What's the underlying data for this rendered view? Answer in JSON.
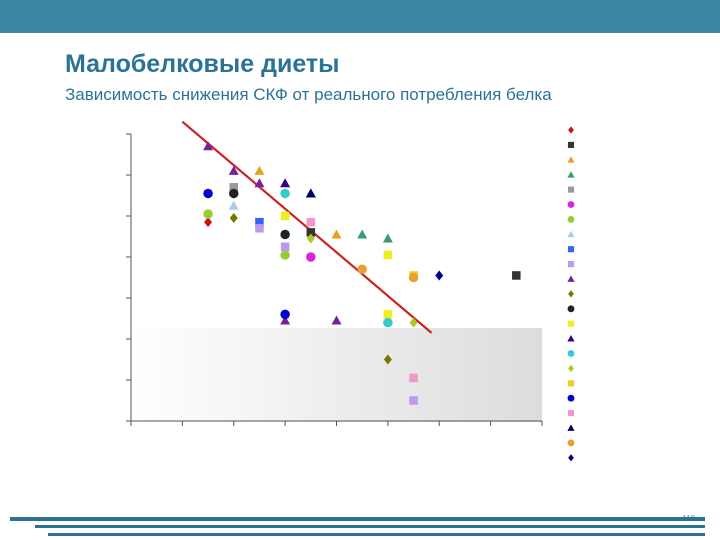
{
  "header": {
    "title": "Малобелковые диеты",
    "subtitle": "Зависимость снижения СКФ от реального потребления белка"
  },
  "footer": {
    "page_number": "118"
  },
  "colors": {
    "accent": "#3a87a6",
    "heading": "#2a7396",
    "trend_line": "#cc2222"
  },
  "chart_data": {
    "type": "scatter",
    "title": "",
    "xlabel": "",
    "ylabel": "",
    "xlim": [
      0,
      8
    ],
    "ylim": [
      0,
      7
    ],
    "grid": false,
    "legend_position": "right",
    "series": [
      {
        "marker": "diamond",
        "color": "#cc1111",
        "points": [
          [
            1.5,
            4.85
          ]
        ]
      },
      {
        "marker": "square",
        "color": "#333333",
        "points": [
          [
            3.5,
            4.6
          ],
          [
            7.5,
            3.55
          ]
        ]
      },
      {
        "marker": "triangle",
        "color": "#e8a020",
        "points": [
          [
            2.5,
            6.1
          ],
          [
            4.0,
            4.55
          ]
        ]
      },
      {
        "marker": "triangle",
        "color": "#3a9a70",
        "points": [
          [
            4.5,
            4.55
          ],
          [
            5.0,
            4.45
          ]
        ]
      },
      {
        "marker": "square",
        "color": "#999999",
        "points": [
          [
            2.0,
            5.7
          ]
        ]
      },
      {
        "marker": "circle",
        "color": "#dd22dd",
        "points": [
          [
            3.5,
            4.0
          ]
        ]
      },
      {
        "marker": "circle",
        "color": "#99cc33",
        "points": [
          [
            1.5,
            5.05
          ],
          [
            3.0,
            4.05
          ]
        ]
      },
      {
        "marker": "triangle",
        "color": "#aaccee",
        "points": [
          [
            2.0,
            5.25
          ]
        ]
      },
      {
        "marker": "square",
        "color": "#3366ee",
        "points": [
          [
            2.5,
            4.85
          ]
        ]
      },
      {
        "marker": "square",
        "color": "#bb99ee",
        "points": [
          [
            2.5,
            4.7
          ],
          [
            3.0,
            4.25
          ],
          [
            5.5,
            0.5
          ]
        ]
      },
      {
        "marker": "triangle",
        "color": "#772299",
        "points": [
          [
            1.5,
            6.7
          ],
          [
            2.0,
            6.1
          ],
          [
            2.5,
            5.8
          ],
          [
            3.0,
            2.45
          ],
          [
            4.0,
            2.45
          ]
        ]
      },
      {
        "marker": "diamond",
        "color": "#777700",
        "points": [
          [
            2.0,
            4.95
          ],
          [
            5.0,
            1.5
          ]
        ]
      },
      {
        "marker": "circle",
        "color": "#222222",
        "points": [
          [
            2.0,
            5.55
          ],
          [
            3.0,
            4.55
          ]
        ]
      },
      {
        "marker": "square",
        "color": "#eeee22",
        "points": [
          [
            3.0,
            5.0
          ],
          [
            5.0,
            4.05
          ],
          [
            5.0,
            2.6
          ]
        ]
      },
      {
        "marker": "triangle",
        "color": "#330088",
        "points": [
          [
            3.0,
            5.8
          ],
          [
            3.5,
            5.55
          ]
        ]
      },
      {
        "marker": "circle",
        "color": "#33cccc",
        "points": [
          [
            3.0,
            5.55
          ],
          [
            5.0,
            2.4
          ]
        ]
      },
      {
        "marker": "diamond",
        "color": "#aacc22",
        "points": [
          [
            3.5,
            4.45
          ],
          [
            5.5,
            2.4
          ]
        ]
      },
      {
        "marker": "square",
        "color": "#eecc22",
        "points": [
          [
            5.5,
            3.55
          ]
        ]
      },
      {
        "marker": "circle",
        "color": "#0000cc",
        "points": [
          [
            1.5,
            5.55
          ],
          [
            3.0,
            2.6
          ]
        ]
      },
      {
        "marker": "square",
        "color": "#ee99cc",
        "points": [
          [
            3.5,
            4.85
          ],
          [
            5.5,
            1.05
          ]
        ]
      },
      {
        "marker": "triangle",
        "color": "#000066",
        "points": [
          [
            3.5,
            5.55
          ]
        ]
      },
      {
        "marker": "circle",
        "color": "#e8a030",
        "points": [
          [
            4.5,
            3.7
          ],
          [
            5.5,
            3.5
          ]
        ]
      },
      {
        "marker": "diamond",
        "color": "#000088",
        "points": [
          [
            6.0,
            3.55
          ]
        ]
      }
    ],
    "trend_line": {
      "color": "#cc2222",
      "points": [
        [
          1.0,
          7.3
        ],
        [
          5.85,
          2.15
        ]
      ]
    }
  }
}
